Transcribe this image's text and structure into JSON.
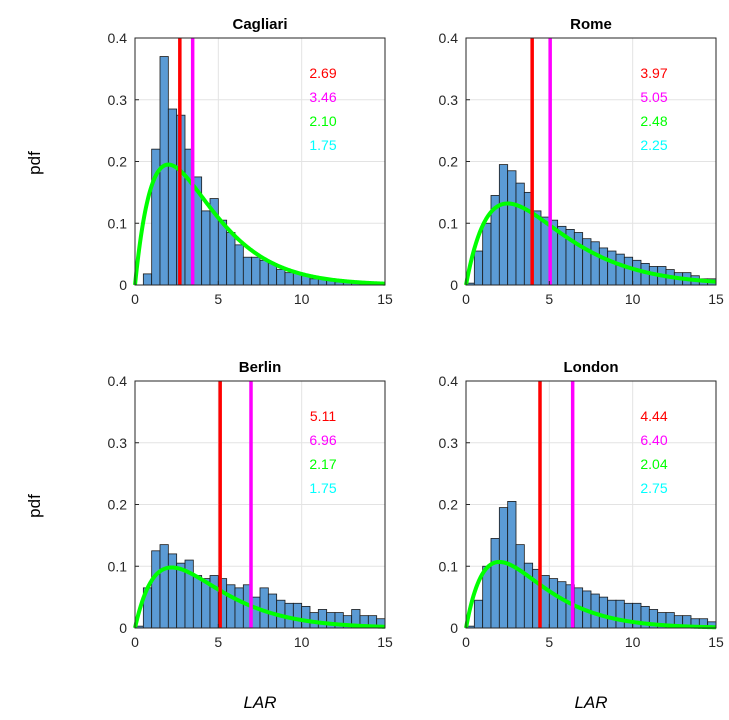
{
  "chart_data": [
    {
      "type": "histogram",
      "title": "Cagliari",
      "xlim": [
        0,
        15
      ],
      "ylim": [
        0,
        0.4
      ],
      "xticks": [
        0,
        5,
        10,
        15
      ],
      "yticks": [
        0,
        0.1,
        0.2,
        0.3,
        0.4
      ],
      "grid": true,
      "bin_width": 0.5,
      "bin_start": 0,
      "bin_values": [
        0,
        0.018,
        0.22,
        0.37,
        0.285,
        0.275,
        0.22,
        0.175,
        0.12,
        0.14,
        0.105,
        0.085,
        0.065,
        0.045,
        0.045,
        0.04,
        0.035,
        0.025,
        0.02,
        0.02,
        0.015,
        0.01,
        0.01,
        0.008,
        0.005,
        0.005,
        0.005,
        0,
        0.005,
        0,
        0.005
      ],
      "vlines": [
        {
          "x": 2.69,
          "color": "#ff0000"
        },
        {
          "x": 3.46,
          "color": "#ff00ff"
        }
      ],
      "fit_curve": {
        "color": "#00ff00",
        "mode": 2.0,
        "peak": 0.195
      },
      "annotations": [
        {
          "text": "2.69",
          "color": "#ff0000"
        },
        {
          "text": "3.46",
          "color": "#ff00ff"
        },
        {
          "text": "2.10",
          "color": "#00ff00"
        },
        {
          "text": "1.75",
          "color": "#00ffff"
        }
      ]
    },
    {
      "type": "histogram",
      "title": "Rome",
      "xlim": [
        0,
        15
      ],
      "ylim": [
        0,
        0.4
      ],
      "xticks": [
        0,
        5,
        10,
        15
      ],
      "yticks": [
        0,
        0.1,
        0.2,
        0.3,
        0.4
      ],
      "grid": true,
      "bin_width": 0.5,
      "bin_start": 0,
      "bin_values": [
        0.003,
        0.055,
        0.1,
        0.145,
        0.195,
        0.185,
        0.165,
        0.15,
        0.12,
        0.11,
        0.105,
        0.095,
        0.09,
        0.085,
        0.075,
        0.07,
        0.06,
        0.055,
        0.05,
        0.045,
        0.04,
        0.035,
        0.03,
        0.03,
        0.025,
        0.02,
        0.02,
        0.015,
        0.01,
        0.01
      ],
      "vlines": [
        {
          "x": 3.97,
          "color": "#ff0000"
        },
        {
          "x": 5.05,
          "color": "#ff00ff"
        }
      ],
      "fit_curve": {
        "color": "#00ff00",
        "mode": 2.5,
        "peak": 0.132
      },
      "annotations": [
        {
          "text": "3.97",
          "color": "#ff0000"
        },
        {
          "text": "5.05",
          "color": "#ff00ff"
        },
        {
          "text": "2.48",
          "color": "#00ff00"
        },
        {
          "text": "2.25",
          "color": "#00ffff"
        }
      ]
    },
    {
      "type": "histogram",
      "title": "Berlin",
      "xlim": [
        0,
        15
      ],
      "ylim": [
        0,
        0.4
      ],
      "xticks": [
        0,
        5,
        10,
        15
      ],
      "yticks": [
        0,
        0.1,
        0.2,
        0.3,
        0.4
      ],
      "grid": true,
      "bin_width": 0.5,
      "bin_start": 0,
      "bin_values": [
        0.003,
        0.065,
        0.125,
        0.135,
        0.12,
        0.105,
        0.11,
        0.085,
        0.08,
        0.085,
        0.08,
        0.07,
        0.065,
        0.07,
        0.05,
        0.065,
        0.055,
        0.045,
        0.04,
        0.04,
        0.035,
        0.025,
        0.03,
        0.025,
        0.025,
        0.02,
        0.03,
        0.02,
        0.02,
        0.015
      ],
      "vlines": [
        {
          "x": 5.11,
          "color": "#ff0000"
        },
        {
          "x": 6.96,
          "color": "#ff00ff"
        }
      ],
      "fit_curve": {
        "color": "#00ff00",
        "mode": 2.2,
        "peak": 0.098
      },
      "annotations": [
        {
          "text": "5.11",
          "color": "#ff0000"
        },
        {
          "text": "6.96",
          "color": "#ff00ff"
        },
        {
          "text": "2.17",
          "color": "#00ff00"
        },
        {
          "text": "1.75",
          "color": "#00ffff"
        }
      ]
    },
    {
      "type": "histogram",
      "title": "London",
      "xlim": [
        0,
        15
      ],
      "ylim": [
        0,
        0.4
      ],
      "xticks": [
        0,
        5,
        10,
        15
      ],
      "yticks": [
        0,
        0.1,
        0.2,
        0.3,
        0.4
      ],
      "grid": true,
      "bin_width": 0.5,
      "bin_start": 0,
      "bin_values": [
        0.003,
        0.045,
        0.1,
        0.145,
        0.195,
        0.205,
        0.135,
        0.105,
        0.095,
        0.085,
        0.08,
        0.075,
        0.07,
        0.065,
        0.06,
        0.055,
        0.05,
        0.045,
        0.045,
        0.04,
        0.04,
        0.035,
        0.03,
        0.025,
        0.025,
        0.02,
        0.02,
        0.015,
        0.015,
        0.01
      ],
      "vlines": [
        {
          "x": 4.44,
          "color": "#ff0000"
        },
        {
          "x": 6.4,
          "color": "#ff00ff"
        }
      ],
      "fit_curve": {
        "color": "#00ff00",
        "mode": 2.0,
        "peak": 0.107
      },
      "annotations": [
        {
          "text": "4.44",
          "color": "#ff0000"
        },
        {
          "text": "6.40",
          "color": "#ff00ff"
        },
        {
          "text": "2.04",
          "color": "#00ff00"
        },
        {
          "text": "2.75",
          "color": "#00ffff"
        }
      ]
    }
  ],
  "ylabel": "pdf",
  "xlabel": "LAR",
  "colors": {
    "bar_fill": "#5b9bd5",
    "bar_edge": "#1a1a1a",
    "grid": "#e3e3e3",
    "axis": "#262626"
  }
}
